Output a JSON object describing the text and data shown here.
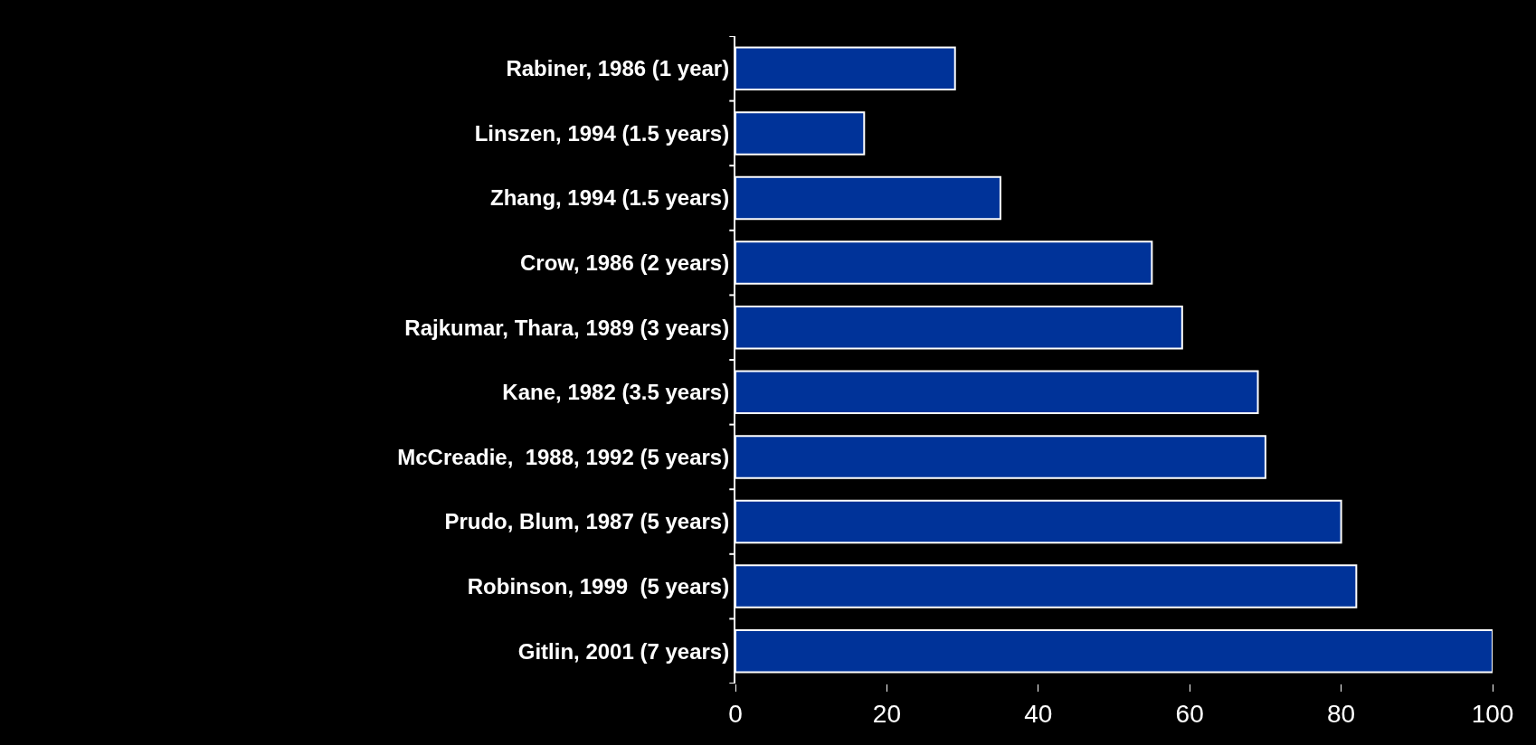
{
  "chart_data": {
    "type": "bar",
    "orientation": "horizontal",
    "categories": [
      "Rabiner, 1986 (1 year)",
      "Linszen, 1994 (1.5 years)",
      "Zhang, 1994 (1.5 years)",
      "Crow, 1986 (2 years)",
      "Rajkumar, Thara, 1989 (3 years)",
      "Kane, 1982 (3.5 years)",
      "McCreadie,  1988, 1992 (5 years)",
      "Prudo, Blum, 1987 (5 years)",
      "Robinson, 1999  (5 years)",
      "Gitlin, 2001 (7 years)"
    ],
    "values": [
      29,
      17,
      35,
      55,
      59,
      69,
      70,
      80,
      82,
      100
    ],
    "color": "#003399",
    "xlim": [
      0,
      100
    ],
    "xticks": [
      0,
      20,
      40,
      60,
      80,
      100
    ],
    "grid": false,
    "legend": false
  }
}
